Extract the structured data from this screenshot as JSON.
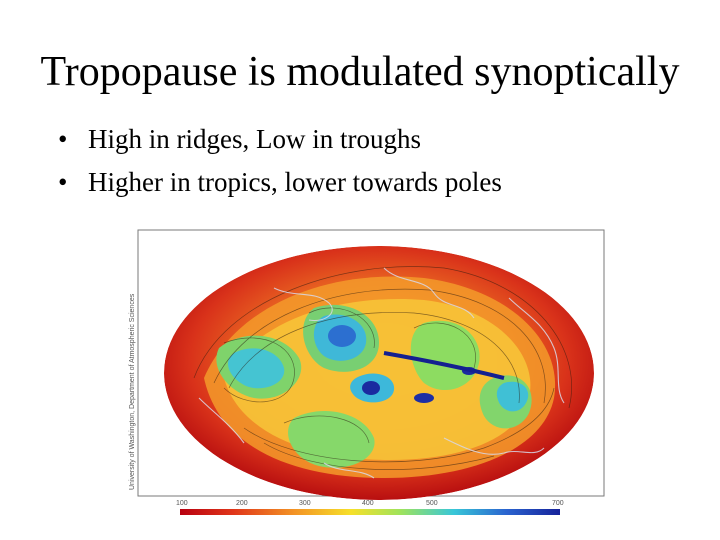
{
  "slide": {
    "title": "Tropopause is modulated synoptically",
    "bullets": [
      "High in ridges, Low in troughs",
      "Higher in tropics, lower towards poles"
    ]
  },
  "figure": {
    "description_icon": "tropopause-map-image",
    "credit_text": "University of Washington, Department of Atmospheric Sciences",
    "colorbar_ticks": [
      "100",
      "200",
      "300",
      "400",
      "500",
      "700"
    ],
    "colorbar_colors": [
      "#c0000a",
      "#e8441c",
      "#f7a025",
      "#f5e22a",
      "#9fe25b",
      "#3ec9d6",
      "#2b6fd0",
      "#1a2aa0"
    ]
  }
}
